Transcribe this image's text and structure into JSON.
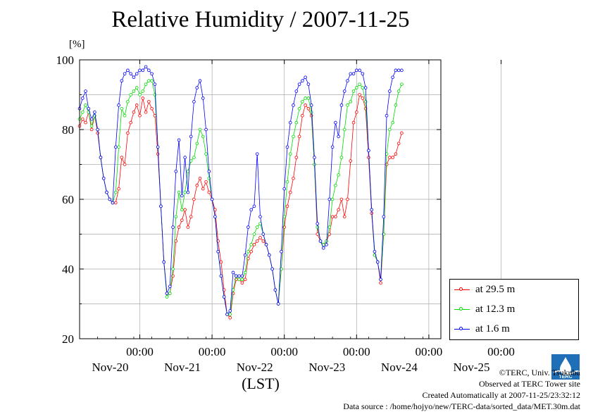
{
  "page": {
    "title": "Relative Humidity / 2007-11-25",
    "unit": "[%]",
    "xlabel": "(LST)",
    "credit": "©TERC, Univ. Tsukuba",
    "observed": "Observed at TERC Tower site",
    "created": "Created Automatically at 2007-11-25/23:32:12",
    "source": "Data source : /home/hojyo/new/TERC-data/sorted_data/MET.30m.dat",
    "logo_text": "TERC"
  },
  "chart_data": {
    "type": "line",
    "title": "Relative Humidity / 2007-11-25",
    "ylabel": "[%]",
    "xlabel": "(LST)",
    "ylim": [
      20,
      100
    ],
    "xlim_hours": [
      -20,
      100
    ],
    "y_ticks": [
      "20",
      "40",
      "60",
      "80",
      "100"
    ],
    "x_tick_labels": [
      {
        "time": "00:00",
        "date": "Nov-20"
      },
      {
        "time": "00:00",
        "date": "Nov-21"
      },
      {
        "time": "00:00",
        "date": "Nov-22"
      },
      {
        "time": "00:00",
        "date": "Nov-23"
      },
      {
        "time": "00:00",
        "date": "Nov-24"
      },
      {
        "time": "00:00",
        "date": "Nov-25"
      }
    ],
    "grid": true,
    "legend_position": "bottom-right",
    "series": [
      {
        "name": "at 29.5 m",
        "color": "#ff0000",
        "points": [
          [
            -20,
            81
          ],
          [
            -19,
            83
          ],
          [
            -18,
            82
          ],
          [
            -17,
            85
          ],
          [
            -16,
            80
          ],
          [
            -15,
            84
          ],
          [
            -14,
            79
          ],
          [
            -13,
            72
          ],
          [
            -12,
            66
          ],
          [
            -11,
            62
          ],
          [
            -10,
            60
          ],
          [
            -9,
            59
          ],
          [
            -8,
            59
          ],
          [
            -7,
            63
          ],
          [
            -6,
            72
          ],
          [
            -5,
            70
          ],
          [
            -4,
            79
          ],
          [
            -3,
            82
          ],
          [
            -2,
            85
          ],
          [
            -1,
            87
          ],
          [
            0,
            84
          ],
          [
            1,
            89
          ],
          [
            2,
            85
          ],
          [
            3,
            88
          ],
          [
            4,
            86
          ],
          [
            5,
            84
          ],
          [
            6,
            73
          ],
          [
            7,
            58
          ],
          [
            8,
            42
          ],
          [
            9,
            33
          ],
          [
            10,
            33
          ],
          [
            11,
            38
          ],
          [
            12,
            48
          ],
          [
            13,
            52
          ],
          [
            14,
            54
          ],
          [
            15,
            57
          ],
          [
            16,
            52
          ],
          [
            17,
            55
          ],
          [
            18,
            60
          ],
          [
            19,
            64
          ],
          [
            20,
            66
          ],
          [
            21,
            63
          ],
          [
            22,
            65
          ],
          [
            23,
            62
          ],
          [
            24,
            60
          ],
          [
            25,
            57
          ],
          [
            26,
            48
          ],
          [
            27,
            42
          ],
          [
            28,
            34
          ],
          [
            29,
            27
          ],
          [
            30,
            26
          ],
          [
            31,
            33
          ],
          [
            32,
            37
          ],
          [
            33,
            37
          ],
          [
            34,
            36
          ],
          [
            35,
            37
          ],
          [
            36,
            43
          ],
          [
            37,
            45
          ],
          [
            38,
            47
          ],
          [
            39,
            48
          ],
          [
            40,
            49
          ],
          [
            41,
            48
          ],
          [
            42,
            47
          ],
          [
            43,
            44
          ],
          [
            44,
            40
          ],
          [
            45,
            34
          ],
          [
            46,
            30
          ],
          [
            47,
            40
          ],
          [
            48,
            52
          ],
          [
            49,
            58
          ],
          [
            50,
            62
          ],
          [
            51,
            66
          ],
          [
            52,
            72
          ],
          [
            53,
            78
          ],
          [
            54,
            84
          ],
          [
            55,
            87
          ],
          [
            56,
            86
          ],
          [
            57,
            84
          ],
          [
            58,
            70
          ],
          [
            59,
            50
          ],
          [
            60,
            48
          ],
          [
            61,
            47
          ],
          [
            62,
            48
          ],
          [
            63,
            50
          ],
          [
            64,
            55
          ],
          [
            65,
            55
          ],
          [
            66,
            57
          ],
          [
            67,
            60
          ],
          [
            68,
            55
          ],
          [
            69,
            60
          ],
          [
            70,
            71
          ],
          [
            71,
            82
          ],
          [
            72,
            85
          ],
          [
            73,
            90
          ],
          [
            74,
            89
          ],
          [
            75,
            86
          ],
          [
            76,
            72
          ],
          [
            77,
            56
          ],
          [
            78,
            44
          ],
          [
            79,
            42
          ],
          [
            80,
            36
          ],
          [
            81,
            50
          ],
          [
            82,
            70
          ],
          [
            83,
            72
          ],
          [
            84,
            72
          ],
          [
            85,
            73
          ],
          [
            86,
            76
          ],
          [
            87,
            79
          ]
        ]
      },
      {
        "name": "at 12.3 m",
        "color": "#00dd00",
        "points": [
          [
            -20,
            83
          ],
          [
            -19,
            85
          ],
          [
            -18,
            87
          ],
          [
            -17,
            85
          ],
          [
            -16,
            81
          ],
          [
            -15,
            84
          ],
          [
            -14,
            80
          ],
          [
            -13,
            72
          ],
          [
            -12,
            66
          ],
          [
            -11,
            62
          ],
          [
            -10,
            60
          ],
          [
            -9,
            59
          ],
          [
            -8,
            62
          ],
          [
            -7,
            75
          ],
          [
            -6,
            86
          ],
          [
            -5,
            84
          ],
          [
            -4,
            88
          ],
          [
            -3,
            90
          ],
          [
            -2,
            91
          ],
          [
            -1,
            92
          ],
          [
            0,
            90
          ],
          [
            1,
            91
          ],
          [
            2,
            93
          ],
          [
            3,
            94
          ],
          [
            4,
            94
          ],
          [
            5,
            90
          ],
          [
            6,
            75
          ],
          [
            7,
            58
          ],
          [
            8,
            42
          ],
          [
            9,
            32
          ],
          [
            10,
            33
          ],
          [
            11,
            40
          ],
          [
            12,
            55
          ],
          [
            13,
            62
          ],
          [
            14,
            57
          ],
          [
            15,
            62
          ],
          [
            16,
            68
          ],
          [
            17,
            71
          ],
          [
            18,
            72
          ],
          [
            19,
            76
          ],
          [
            20,
            80
          ],
          [
            21,
            78
          ],
          [
            22,
            73
          ],
          [
            23,
            66
          ],
          [
            24,
            60
          ],
          [
            25,
            55
          ],
          [
            26,
            45
          ],
          [
            27,
            38
          ],
          [
            28,
            32
          ],
          [
            29,
            27
          ],
          [
            30,
            27
          ],
          [
            31,
            34
          ],
          [
            32,
            38
          ],
          [
            33,
            37
          ],
          [
            34,
            37
          ],
          [
            35,
            39
          ],
          [
            36,
            45
          ],
          [
            37,
            47
          ],
          [
            38,
            50
          ],
          [
            39,
            52
          ],
          [
            40,
            53
          ],
          [
            41,
            50
          ],
          [
            42,
            47
          ],
          [
            43,
            44
          ],
          [
            44,
            40
          ],
          [
            45,
            34
          ],
          [
            46,
            30
          ],
          [
            47,
            40
          ],
          [
            48,
            55
          ],
          [
            49,
            65
          ],
          [
            50,
            73
          ],
          [
            51,
            78
          ],
          [
            52,
            82
          ],
          [
            53,
            86
          ],
          [
            54,
            88
          ],
          [
            55,
            89
          ],
          [
            56,
            89
          ],
          [
            57,
            85
          ],
          [
            58,
            70
          ],
          [
            59,
            52
          ],
          [
            60,
            48
          ],
          [
            61,
            47
          ],
          [
            62,
            48
          ],
          [
            63,
            52
          ],
          [
            64,
            60
          ],
          [
            65,
            64
          ],
          [
            66,
            67
          ],
          [
            67,
            72
          ],
          [
            68,
            80
          ],
          [
            69,
            87
          ],
          [
            70,
            88
          ],
          [
            71,
            91
          ],
          [
            72,
            92
          ],
          [
            73,
            93
          ],
          [
            74,
            92
          ],
          [
            75,
            88
          ],
          [
            76,
            74
          ],
          [
            77,
            57
          ],
          [
            78,
            44
          ],
          [
            79,
            42
          ],
          [
            80,
            37
          ],
          [
            81,
            50
          ],
          [
            82,
            73
          ],
          [
            83,
            80
          ],
          [
            84,
            82
          ],
          [
            85,
            87
          ],
          [
            86,
            91
          ],
          [
            87,
            93
          ]
        ]
      },
      {
        "name": "at 1.6 m",
        "color": "#0000ff",
        "points": [
          [
            -20,
            86
          ],
          [
            -19,
            89
          ],
          [
            -18,
            91
          ],
          [
            -17,
            86
          ],
          [
            -16,
            83
          ],
          [
            -15,
            85
          ],
          [
            -14,
            80
          ],
          [
            -13,
            72
          ],
          [
            -12,
            66
          ],
          [
            -11,
            62
          ],
          [
            -10,
            60
          ],
          [
            -9,
            59
          ],
          [
            -8,
            75
          ],
          [
            -7,
            87
          ],
          [
            -6,
            94
          ],
          [
            -5,
            96
          ],
          [
            -4,
            97
          ],
          [
            -3,
            96
          ],
          [
            -2,
            95
          ],
          [
            -1,
            96
          ],
          [
            0,
            97
          ],
          [
            1,
            97
          ],
          [
            2,
            98
          ],
          [
            3,
            97
          ],
          [
            4,
            96
          ],
          [
            5,
            93
          ],
          [
            6,
            75
          ],
          [
            7,
            58
          ],
          [
            8,
            42
          ],
          [
            9,
            33
          ],
          [
            10,
            35
          ],
          [
            11,
            52
          ],
          [
            12,
            68
          ],
          [
            13,
            77
          ],
          [
            14,
            61
          ],
          [
            15,
            72
          ],
          [
            16,
            62
          ],
          [
            17,
            78
          ],
          [
            18,
            88
          ],
          [
            19,
            92
          ],
          [
            20,
            94
          ],
          [
            21,
            89
          ],
          [
            22,
            80
          ],
          [
            23,
            68
          ],
          [
            24,
            60
          ],
          [
            25,
            55
          ],
          [
            26,
            45
          ],
          [
            27,
            38
          ],
          [
            28,
            32
          ],
          [
            29,
            27
          ],
          [
            30,
            28
          ],
          [
            31,
            39
          ],
          [
            32,
            38
          ],
          [
            33,
            38
          ],
          [
            34,
            38
          ],
          [
            35,
            44
          ],
          [
            36,
            52
          ],
          [
            37,
            57
          ],
          [
            38,
            58
          ],
          [
            39,
            73
          ],
          [
            40,
            55
          ],
          [
            41,
            50
          ],
          [
            42,
            47
          ],
          [
            43,
            44
          ],
          [
            44,
            40
          ],
          [
            45,
            34
          ],
          [
            46,
            30
          ],
          [
            47,
            45
          ],
          [
            48,
            63
          ],
          [
            49,
            75
          ],
          [
            50,
            82
          ],
          [
            51,
            87
          ],
          [
            52,
            91
          ],
          [
            53,
            93
          ],
          [
            54,
            94
          ],
          [
            55,
            95
          ],
          [
            56,
            93
          ],
          [
            57,
            87
          ],
          [
            58,
            72
          ],
          [
            59,
            53
          ],
          [
            60,
            48
          ],
          [
            61,
            46
          ],
          [
            62,
            47
          ],
          [
            63,
            60
          ],
          [
            64,
            75
          ],
          [
            65,
            82
          ],
          [
            66,
            78
          ],
          [
            67,
            87
          ],
          [
            68,
            91
          ],
          [
            69,
            94
          ],
          [
            70,
            96
          ],
          [
            71,
            96
          ],
          [
            72,
            97
          ],
          [
            73,
            97
          ],
          [
            74,
            96
          ],
          [
            75,
            92
          ],
          [
            76,
            74
          ],
          [
            77,
            57
          ],
          [
            78,
            45
          ],
          [
            79,
            42
          ],
          [
            80,
            37
          ],
          [
            81,
            55
          ],
          [
            82,
            84
          ],
          [
            83,
            91
          ],
          [
            84,
            95
          ],
          [
            85,
            97
          ],
          [
            86,
            97
          ],
          [
            87,
            97
          ]
        ]
      }
    ]
  }
}
